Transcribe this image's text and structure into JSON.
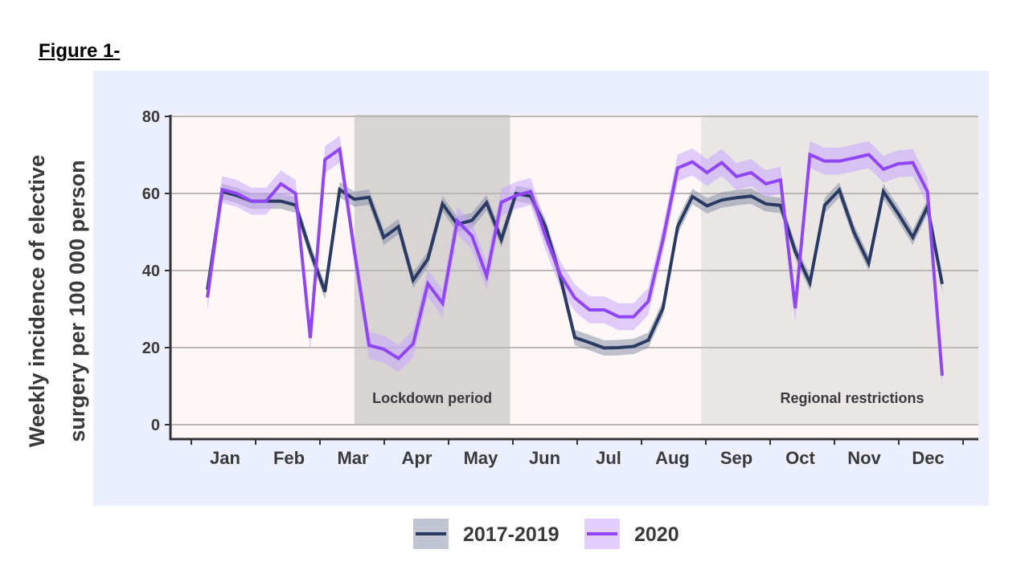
{
  "figure_title": "Figure 1-",
  "chart_data": {
    "type": "line",
    "title": "",
    "xlabel": "",
    "ylabel": "Weekly incidence of elective surgery per 100 000 person",
    "ylabel_lines": [
      "Weekly incidence of elective",
      "surgery per 100 000 person"
    ],
    "ylim": [
      0,
      80
    ],
    "yticks": [
      0,
      20,
      40,
      60,
      80
    ],
    "xtick_labels": [
      "Jan",
      "Feb",
      "Mar",
      "Apr",
      "May",
      "Jun",
      "Jul",
      "Aug",
      "Sep",
      "Oct",
      "Nov",
      "Dec"
    ],
    "x_unit": "week",
    "x": [
      1,
      2,
      3,
      4,
      5,
      6,
      7,
      8,
      9,
      10,
      11,
      12,
      13,
      14,
      15,
      16,
      17,
      18,
      19,
      20,
      21,
      22,
      23,
      24,
      25,
      26,
      27,
      28,
      29,
      30,
      31,
      32,
      33,
      34,
      35,
      36,
      37,
      38,
      39,
      40,
      41,
      42,
      43,
      44,
      45,
      46,
      47,
      48,
      49,
      50,
      51
    ],
    "grid": true,
    "legend_position": "bottom",
    "series": [
      {
        "name": "2017-2019",
        "color": "#2b3a63",
        "band_color": "#8a91a8",
        "ci_halfwidth": 2,
        "values": [
          35,
          60.5,
          59.5,
          58,
          58,
          58,
          57,
          45,
          34.5,
          61,
          58.5,
          59,
          48.6,
          51.4,
          37.5,
          43,
          57.3,
          52,
          53,
          57.6,
          48,
          60,
          59.3,
          51.4,
          38.5,
          22.6,
          21.3,
          19.9,
          20,
          20.3,
          21.9,
          30.2,
          51.4,
          59.2,
          56.8,
          58.3,
          58.9,
          59.3,
          57.3,
          56.9,
          45,
          36.8,
          56.9,
          60.9,
          49.9,
          41.9,
          60.5,
          54.8,
          48.6,
          56.6,
          36.5
        ]
      },
      {
        "name": "2020",
        "color": "#9146f5",
        "band_color": "#c9a6fb",
        "ci_halfwidth": 3.5,
        "values": [
          33,
          61,
          60,
          58,
          58,
          62.5,
          60,
          22.5,
          68.8,
          71.5,
          45,
          20.6,
          19.6,
          17.2,
          21,
          36.6,
          31.5,
          52.9,
          49,
          38.6,
          57.7,
          59.5,
          60.5,
          49,
          39,
          32.9,
          29.8,
          29.8,
          28,
          28,
          32,
          48,
          66.6,
          68.2,
          65.4,
          68,
          64.4,
          65.4,
          62.5,
          63.5,
          30.2,
          70.1,
          68.4,
          68.4,
          69.2,
          70.1,
          66.3,
          67.7,
          68,
          60.5,
          12.7
        ]
      }
    ],
    "annotations": [
      {
        "label": "Lockdown period",
        "week_range": [
          11,
          21.6
        ],
        "color": "#d8d4d4"
      },
      {
        "label": "Regional restrictions",
        "week_range": [
          34.6,
          53.8
        ],
        "color": "#e9e6e5"
      }
    ]
  }
}
